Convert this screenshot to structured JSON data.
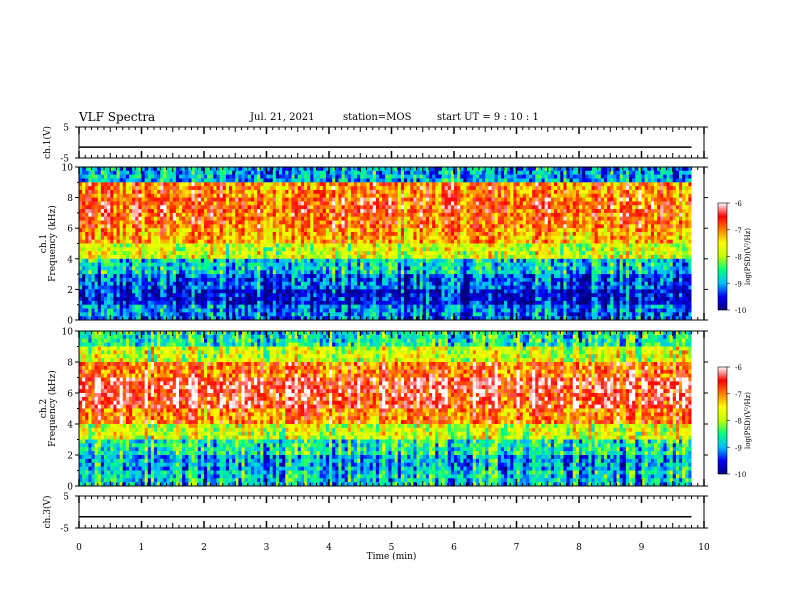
{
  "header": {
    "title": "VLF Spectra",
    "date": "Jul. 21, 2021",
    "station": "station=MOS",
    "start": "start UT =  9 : 10 : 1"
  },
  "colors": {
    "colormap": [
      "#000080",
      "#0000ff",
      "#00bfff",
      "#00ff80",
      "#bfff00",
      "#ffff00",
      "#ff8000",
      "#ff0000",
      "#ffffff"
    ]
  },
  "chart_data": [
    {
      "type": "line",
      "name": "ch1-waveform",
      "ylabel": "ch.1(V)",
      "ylim": [
        -5,
        5
      ],
      "yticks": [
        "5",
        "-5"
      ],
      "xlim": [
        0,
        10
      ],
      "x": [
        0,
        9.8
      ],
      "values": [
        -1.5,
        -1.5
      ]
    },
    {
      "type": "heatmap",
      "name": "ch1-spectrogram",
      "ylabel": "ch.1\nFrequency (kHz)",
      "ylim": [
        0,
        10
      ],
      "yticks": [
        "0",
        "2",
        "4",
        "6",
        "8",
        "10"
      ],
      "xlim": [
        0,
        10
      ],
      "data_end": 9.8,
      "profile_khz": [
        0.5,
        1.5,
        2.5,
        3.5,
        4.5,
        5.5,
        6.5,
        7.5,
        8.5,
        9.5
      ],
      "profile_log_psd": [
        -9.2,
        -9.6,
        -9.3,
        -8.8,
        -7.8,
        -7.2,
        -6.9,
        -6.8,
        -7.0,
        -9.0
      ],
      "colorbar": {
        "label": "log(PSD)(V²/Hz)",
        "min": -10,
        "max": -6,
        "ticks": [
          "-6",
          "-7",
          "-8",
          "-9",
          "-10"
        ]
      }
    },
    {
      "type": "heatmap",
      "name": "ch2-spectrogram",
      "ylabel": "ch.2\nFrequency (kHz)",
      "ylim": [
        0,
        10
      ],
      "yticks": [
        "0",
        "2",
        "4",
        "6",
        "8",
        "10"
      ],
      "xlim": [
        0,
        10
      ],
      "data_end": 9.8,
      "profile_khz": [
        0.5,
        1.5,
        2.5,
        3.5,
        4.5,
        5.5,
        6.5,
        7.5,
        8.5,
        9.5
      ],
      "profile_log_psd": [
        -8.8,
        -9.0,
        -8.6,
        -7.8,
        -7.0,
        -6.5,
        -6.4,
        -6.9,
        -7.8,
        -8.6
      ],
      "colorbar": {
        "label": "log(PSD)(V²/Hz)",
        "min": -10,
        "max": -6,
        "ticks": [
          "-6",
          "-7",
          "-8",
          "-9",
          "-10"
        ]
      }
    },
    {
      "type": "line",
      "name": "ch3-waveform",
      "ylabel": "ch.3(V)",
      "ylim": [
        -5,
        5
      ],
      "yticks": [
        "5",
        "-5"
      ],
      "xlim": [
        0,
        10
      ],
      "x": [
        0,
        9.8
      ],
      "values": [
        -1.5,
        -1.5
      ]
    }
  ],
  "xaxis": {
    "label": "Time (min)",
    "ticks": [
      "0",
      "1",
      "2",
      "3",
      "4",
      "5",
      "6",
      "7",
      "8",
      "9",
      "10"
    ]
  }
}
